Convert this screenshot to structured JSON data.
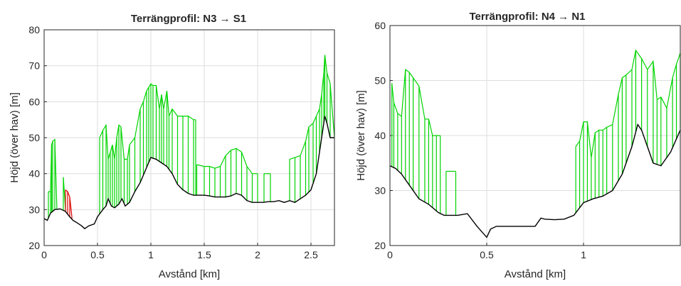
{
  "chart_data": [
    {
      "type": "line",
      "title": "Terrängprofil: N3 → S1",
      "xlabel": "Avstånd [km]",
      "ylabel": "Höjd (över hav) [m]",
      "xlim": [
        0,
        2.72
      ],
      "ylim": [
        20,
        80
      ],
      "xticks": [
        0,
        0.5,
        1,
        1.5,
        2,
        2.5
      ],
      "xtick_labels": [
        "0",
        "0.5",
        "1",
        "1.5",
        "2",
        "2.5"
      ],
      "yticks": [
        20,
        30,
        40,
        50,
        60,
        70,
        80
      ],
      "ytick_labels": [
        "20",
        "30",
        "40",
        "50",
        "60",
        "70",
        "80"
      ],
      "grid": true,
      "ground": {
        "name": "",
        "color": "#000000",
        "x": [
          0,
          0.03,
          0.06,
          0.1,
          0.15,
          0.2,
          0.24,
          0.27,
          0.3,
          0.35,
          0.38,
          0.42,
          0.47,
          0.5,
          0.55,
          0.58,
          0.6,
          0.63,
          0.66,
          0.7,
          0.73,
          0.76,
          0.8,
          0.85,
          0.9,
          0.95,
          1.0,
          1.05,
          1.1,
          1.15,
          1.2,
          1.25,
          1.3,
          1.35,
          1.4,
          1.45,
          1.5,
          1.55,
          1.6,
          1.65,
          1.7,
          1.75,
          1.8,
          1.85,
          1.9,
          1.95,
          2.0,
          2.05,
          2.1,
          2.15,
          2.2,
          2.25,
          2.3,
          2.35,
          2.4,
          2.45,
          2.5,
          2.55,
          2.58,
          2.61,
          2.63,
          2.65,
          2.68,
          2.72
        ],
        "y": [
          27.5,
          27,
          29,
          30,
          30.2,
          29.5,
          28,
          27,
          26.5,
          25.5,
          24.7,
          25.5,
          26,
          28,
          30,
          31,
          33,
          31,
          30.5,
          31.5,
          33,
          31,
          32,
          35,
          37.5,
          41,
          44.5,
          44,
          43,
          42,
          40,
          37,
          35.5,
          34.5,
          34,
          34,
          34,
          33.8,
          33.5,
          33.5,
          33.5,
          33.8,
          34.5,
          34,
          32.5,
          32,
          32,
          32,
          32.2,
          32.2,
          32.5,
          32,
          32.5,
          32,
          33,
          34,
          35.5,
          40,
          46,
          52,
          56,
          54,
          50,
          50
        ]
      },
      "visible": {
        "name": "",
        "color": "#00d400",
        "segments": [
          {
            "x": [
              0.04,
              0.06,
              0.07,
              0.08,
              0.1,
              0.12
            ],
            "y": [
              35,
              35,
              48,
              49,
              49.5,
              30
            ]
          },
          {
            "x": [
              0.18,
              0.2
            ],
            "y": [
              39,
              30
            ]
          },
          {
            "x": [
              0.52,
              0.55,
              0.58,
              0.6,
              0.62,
              0.64,
              0.66,
              0.68,
              0.7,
              0.72,
              0.75,
              0.78,
              0.8,
              0.85,
              0.9,
              0.93,
              0.96,
              0.98,
              1.0,
              1.02,
              1.05,
              1.08,
              1.1,
              1.12,
              1.15,
              1.17,
              1.2,
              1.25,
              1.3,
              1.35,
              1.4,
              1.42
            ],
            "y": [
              50,
              52,
              53.5,
              44,
              46,
              48,
              44,
              50,
              53.5,
              53,
              44,
              44,
              48,
              50,
              58,
              60,
              63,
              64,
              65,
              64.5,
              64.5,
              58,
              62,
              58,
              63,
              56,
              58,
              56,
              56,
              56,
              55,
              55
            ]
          },
          {
            "x": [
              1.43,
              1.5,
              1.55,
              1.6,
              1.65,
              1.7,
              1.75,
              1.8,
              1.85,
              1.9,
              1.95,
              2.0
            ],
            "y": [
              42.5,
              42,
              42,
              41.5,
              42,
              45,
              46.5,
              47,
              46,
              42,
              40,
              40
            ]
          },
          {
            "x": [
              2.06,
              2.12
            ],
            "y": [
              40,
              40
            ]
          },
          {
            "x": [
              2.3,
              2.35,
              2.4,
              2.45,
              2.48,
              2.52,
              2.55,
              2.58,
              2.6,
              2.62,
              2.63,
              2.65,
              2.68,
              2.72
            ],
            "y": [
              44,
              44.5,
              45,
              49,
              53,
              54,
              56,
              58,
              62,
              68,
              73,
              68,
              65,
              50
            ]
          }
        ]
      },
      "blocked": {
        "name": "",
        "color": "#e00000",
        "segments": [
          {
            "x": [
              0.2,
              0.22,
              0.24,
              0.26
            ],
            "y": [
              35.5,
              35,
              33.5,
              28
            ]
          }
        ]
      }
    },
    {
      "type": "line",
      "title": "Terrängprofil: N4 → N1",
      "xlabel": "Avstånd [km]",
      "ylabel": "Höjd (över hav) [m]",
      "xlim": [
        0,
        1.5
      ],
      "ylim": [
        20,
        60
      ],
      "xticks": [
        0,
        0.5,
        1
      ],
      "xtick_labels": [
        "0",
        "0.5",
        "1"
      ],
      "yticks": [
        20,
        30,
        40,
        50,
        60
      ],
      "ytick_labels": [
        "20",
        "30",
        "40",
        "50",
        "60"
      ],
      "grid": true,
      "ground": {
        "name": "",
        "color": "#000000",
        "x": [
          0,
          0.03,
          0.06,
          0.1,
          0.15,
          0.2,
          0.25,
          0.28,
          0.3,
          0.35,
          0.4,
          0.45,
          0.5,
          0.52,
          0.55,
          0.6,
          0.65,
          0.7,
          0.75,
          0.78,
          0.8,
          0.85,
          0.9,
          0.95,
          1.0,
          1.05,
          1.1,
          1.15,
          1.2,
          1.25,
          1.28,
          1.3,
          1.33,
          1.36,
          1.4,
          1.45,
          1.5
        ],
        "y": [
          34.5,
          34,
          33,
          31,
          28.5,
          27.5,
          26,
          25.5,
          25.5,
          25.5,
          25.8,
          23.5,
          21.5,
          23,
          23.5,
          23.5,
          23.5,
          23.5,
          23.5,
          25,
          24.8,
          24.7,
          24.8,
          25.5,
          27.8,
          28.5,
          29,
          30,
          33,
          38,
          42,
          41,
          38,
          35,
          34.5,
          37,
          41
        ]
      },
      "visible": {
        "name": "",
        "color": "#00d400",
        "segments": [
          {
            "x": [
              0.01,
              0.02,
              0.04,
              0.06,
              0.08,
              0.1,
              0.12,
              0.15,
              0.18,
              0.2,
              0.22,
              0.24,
              0.26
            ],
            "y": [
              49.5,
              46,
              44,
              43.5,
              52,
              51.5,
              50.5,
              49,
              43,
              43,
              40,
              40,
              40
            ]
          },
          {
            "x": [
              0.29,
              0.34
            ],
            "y": [
              33.5,
              33.5
            ]
          },
          {
            "x": [
              0.96,
              0.98,
              1.0,
              1.02,
              1.04,
              1.06,
              1.08,
              1.1,
              1.12,
              1.15,
              1.18,
              1.2,
              1.22,
              1.25,
              1.27,
              1.3,
              1.33,
              1.36,
              1.38,
              1.4,
              1.43,
              1.46,
              1.48,
              1.5
            ],
            "y": [
              38,
              39,
              42.5,
              42.5,
              36,
              40.5,
              41,
              41,
              41.5,
              42,
              47.5,
              50.5,
              51,
              52,
              55.5,
              54,
              52,
              53.5,
              46.5,
              47,
              45,
              50.5,
              53,
              55
            ]
          }
        ]
      },
      "blocked": {
        "name": "",
        "color": "#e00000",
        "segments": []
      }
    }
  ]
}
